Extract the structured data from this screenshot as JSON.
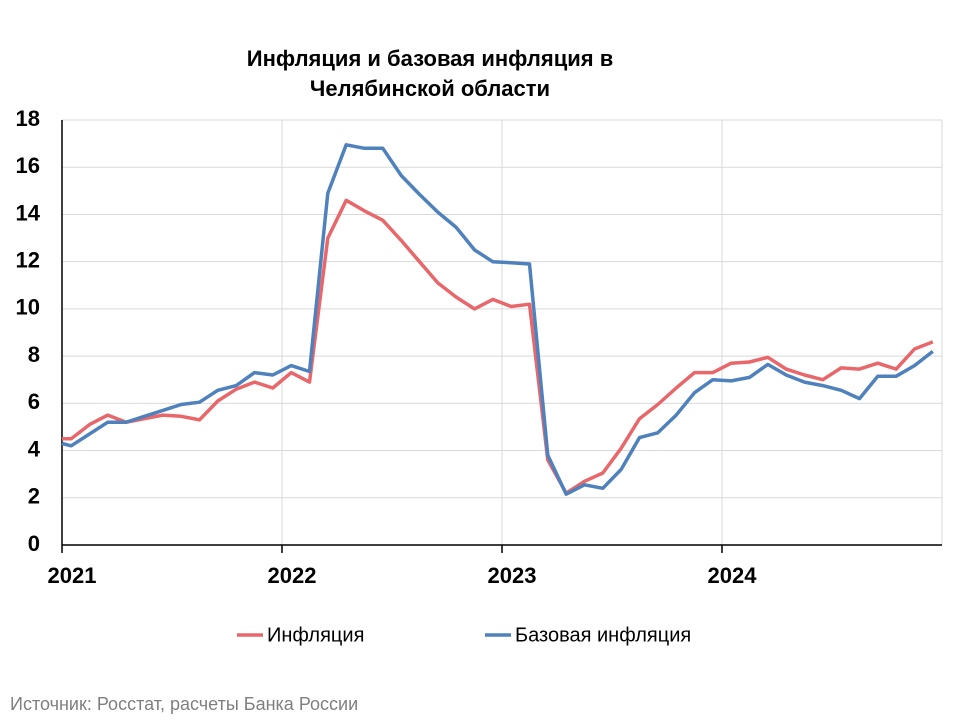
{
  "chart_data": {
    "type": "line",
    "title": [
      "Инфляция и базовая инфляция в",
      "Челябинской области"
    ],
    "source": "Источник: Росстат, расчеты Банка России",
    "x": [
      2021,
      2021.042,
      2021.125,
      2021.208,
      2021.292,
      2021.375,
      2021.458,
      2021.542,
      2021.625,
      2021.708,
      2021.792,
      2021.875,
      2021.958,
      2022.042,
      2022.125,
      2022.208,
      2022.292,
      2022.375,
      2022.458,
      2022.542,
      2022.625,
      2022.708,
      2022.792,
      2022.875,
      2022.958,
      2023.042,
      2023.125,
      2023.208,
      2023.292,
      2023.375,
      2023.458,
      2023.542,
      2023.625,
      2023.708,
      2023.792,
      2023.875,
      2023.958,
      2024.042,
      2024.125,
      2024.208,
      2024.292,
      2024.375,
      2024.458,
      2024.542,
      2024.625,
      2024.708,
      2024.792,
      2024.875,
      2024.958
    ],
    "series": [
      {
        "name": "Инфляция",
        "color": "#e8676b",
        "values": [
          4.5,
          4.5,
          5.1,
          5.5,
          5.2,
          5.35,
          5.5,
          5.45,
          5.3,
          6.1,
          6.6,
          6.9,
          6.65,
          7.3,
          6.9,
          13.0,
          14.6,
          14.15,
          13.75,
          12.9,
          12.0,
          11.1,
          10.5,
          10.0,
          10.4,
          10.1,
          10.2,
          3.6,
          2.2,
          2.7,
          3.05,
          4.1,
          5.35,
          5.95,
          6.65,
          7.3,
          7.3,
          7.7,
          7.75,
          7.95,
          7.45,
          7.2,
          7.0,
          7.5,
          7.45,
          7.7,
          7.45,
          8.3,
          8.6
        ]
      },
      {
        "name": "Базовая инфляция",
        "color": "#4f81bd",
        "values": [
          4.3,
          4.2,
          4.7,
          5.2,
          5.2,
          5.45,
          5.7,
          5.95,
          6.05,
          6.55,
          6.75,
          7.3,
          7.2,
          7.6,
          7.35,
          14.9,
          16.95,
          16.8,
          16.8,
          15.65,
          14.85,
          14.1,
          13.45,
          12.5,
          12.0,
          11.95,
          11.9,
          3.8,
          2.15,
          2.55,
          2.4,
          3.2,
          4.55,
          4.75,
          5.5,
          6.45,
          7.0,
          6.95,
          7.1,
          7.65,
          7.2,
          6.9,
          6.75,
          6.55,
          6.2,
          7.15,
          7.15,
          7.6,
          8.2
        ]
      }
    ],
    "xlim": [
      2021,
      2025
    ],
    "xticks": [
      2021,
      2022,
      2023,
      2024
    ],
    "ylim": [
      0,
      18
    ],
    "yticks": [
      0,
      2,
      4,
      6,
      8,
      10,
      12,
      14,
      16,
      18
    ],
    "grid": true,
    "legend": "bottom"
  }
}
